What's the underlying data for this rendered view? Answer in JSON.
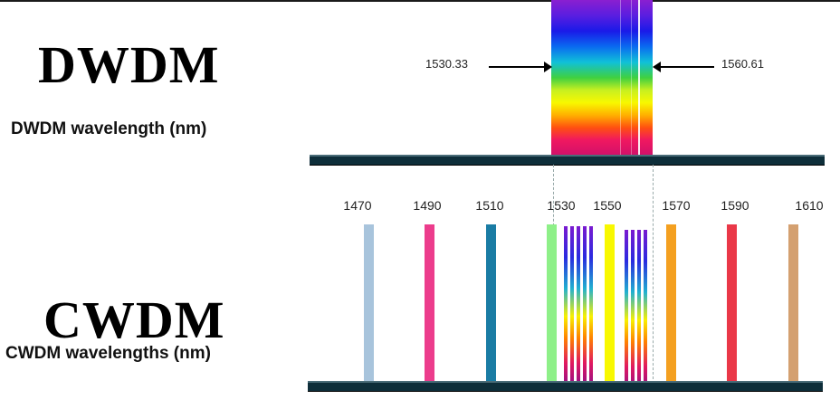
{
  "dwdm": {
    "title": "DWDM",
    "subtitle": "DWDM wavelength (nm)",
    "start_label": "1530.33",
    "end_label": "1560.61"
  },
  "cwdm": {
    "title": "CWDM",
    "subtitle": "CWDM wavelengths (nm)",
    "channels": [
      {
        "label": "1470",
        "color": "#a8c4dc"
      },
      {
        "label": "1490",
        "color": "#ec3c8c"
      },
      {
        "label": "1510",
        "color": "#1a7ca4"
      },
      {
        "label": "1530",
        "color": "#8ef088"
      },
      {
        "label": "1550",
        "color": "#f8f800"
      },
      {
        "label": "1570",
        "color": "#f4a020"
      },
      {
        "label": "1590",
        "color": "#ea3848"
      },
      {
        "label": "1610",
        "color": "#d4a070"
      }
    ]
  }
}
